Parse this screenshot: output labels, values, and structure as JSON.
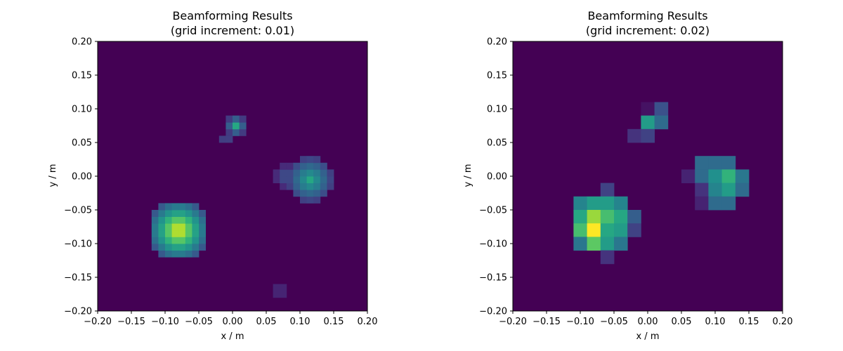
{
  "chart_data": [
    {
      "type": "heatmap",
      "title": "Beamforming Results\n(grid increment: 0.01)",
      "title_lines": [
        "Beamforming Results",
        "(grid increment: 0.01)"
      ],
      "xlabel": "x / m",
      "ylabel": "y / m",
      "xlim": [
        -0.2,
        0.2
      ],
      "ylim": [
        -0.2,
        0.2
      ],
      "grid_increment": 0.01,
      "colormap": "viridis",
      "background_value": 0,
      "xticks": [
        "−0.20",
        "−0.15",
        "−0.10",
        "−0.05",
        "0.00",
        "0.05",
        "0.10",
        "0.15",
        "0.20"
      ],
      "yticks": [
        "−0.20",
        "−0.15",
        "−0.10",
        "−0.05",
        "0.00",
        "0.05",
        "0.10",
        "0.15",
        "0.20"
      ],
      "sources": [
        {
          "x": -0.08,
          "y": -0.08,
          "strength": 1.0,
          "radius": 0.045
        },
        {
          "x": 0.115,
          "y": -0.005,
          "strength": 0.6,
          "radius": 0.035
        },
        {
          "x": 0.08,
          "y": 0.0,
          "strength": 0.3,
          "radius": 0.02
        },
        {
          "x": 0.005,
          "y": 0.075,
          "strength": 0.6,
          "radius": 0.015
        },
        {
          "x": -0.01,
          "y": 0.055,
          "strength": 0.3,
          "radius": 0.01
        },
        {
          "x": 0.07,
          "y": -0.17,
          "strength": 0.3,
          "radius": 0.008
        }
      ]
    },
    {
      "type": "heatmap",
      "title": "Beamforming Results\n(grid increment: 0.02)",
      "title_lines": [
        "Beamforming Results",
        "(grid increment: 0.02)"
      ],
      "xlabel": "x / m",
      "ylabel": "y / m",
      "xlim": [
        -0.2,
        0.2
      ],
      "ylim": [
        -0.2,
        0.2
      ],
      "grid_increment": 0.02,
      "colormap": "viridis",
      "background_value": 0,
      "xticks": [
        "−0.20",
        "−0.15",
        "−0.10",
        "−0.05",
        "0.00",
        "0.05",
        "0.10",
        "0.15",
        "0.20"
      ],
      "yticks": [
        "−0.20",
        "−0.15",
        "−0.10",
        "−0.05",
        "0.00",
        "0.05",
        "0.10",
        "0.15",
        "0.20"
      ],
      "cells": [
        {
          "x": -0.06,
          "y": -0.02,
          "v": 0.2
        },
        {
          "x": -0.1,
          "y": -0.04,
          "v": 0.45
        },
        {
          "x": -0.08,
          "y": -0.04,
          "v": 0.55
        },
        {
          "x": -0.06,
          "y": -0.04,
          "v": 0.55
        },
        {
          "x": -0.04,
          "y": -0.04,
          "v": 0.45
        },
        {
          "x": -0.1,
          "y": -0.06,
          "v": 0.6
        },
        {
          "x": -0.08,
          "y": -0.06,
          "v": 0.85
        },
        {
          "x": -0.06,
          "y": -0.06,
          "v": 0.7
        },
        {
          "x": -0.04,
          "y": -0.06,
          "v": 0.6
        },
        {
          "x": -0.02,
          "y": -0.06,
          "v": 0.3
        },
        {
          "x": -0.1,
          "y": -0.08,
          "v": 0.7
        },
        {
          "x": -0.08,
          "y": -0.08,
          "v": 1.0
        },
        {
          "x": -0.06,
          "y": -0.08,
          "v": 0.6
        },
        {
          "x": -0.04,
          "y": -0.08,
          "v": 0.55
        },
        {
          "x": -0.02,
          "y": -0.08,
          "v": 0.2
        },
        {
          "x": -0.1,
          "y": -0.1,
          "v": 0.4
        },
        {
          "x": -0.08,
          "y": -0.1,
          "v": 0.75
        },
        {
          "x": -0.06,
          "y": -0.1,
          "v": 0.55
        },
        {
          "x": -0.04,
          "y": -0.1,
          "v": 0.4
        },
        {
          "x": -0.06,
          "y": -0.12,
          "v": 0.15
        },
        {
          "x": 0.08,
          "y": 0.02,
          "v": 0.35
        },
        {
          "x": 0.1,
          "y": 0.02,
          "v": 0.35
        },
        {
          "x": 0.12,
          "y": 0.02,
          "v": 0.35
        },
        {
          "x": 0.06,
          "y": 0.0,
          "v": 0.1
        },
        {
          "x": 0.08,
          "y": 0.0,
          "v": 0.35
        },
        {
          "x": 0.1,
          "y": 0.0,
          "v": 0.5
        },
        {
          "x": 0.12,
          "y": 0.0,
          "v": 0.65
        },
        {
          "x": 0.14,
          "y": 0.0,
          "v": 0.4
        },
        {
          "x": 0.08,
          "y": -0.02,
          "v": 0.15
        },
        {
          "x": 0.1,
          "y": -0.02,
          "v": 0.45
        },
        {
          "x": 0.12,
          "y": -0.02,
          "v": 0.55
        },
        {
          "x": 0.14,
          "y": -0.02,
          "v": 0.35
        },
        {
          "x": 0.08,
          "y": -0.04,
          "v": 0.1
        },
        {
          "x": 0.1,
          "y": -0.04,
          "v": 0.35
        },
        {
          "x": 0.12,
          "y": -0.04,
          "v": 0.35
        },
        {
          "x": 0.0,
          "y": 0.1,
          "v": 0.05
        },
        {
          "x": 0.02,
          "y": 0.1,
          "v": 0.25
        },
        {
          "x": 0.0,
          "y": 0.08,
          "v": 0.55
        },
        {
          "x": 0.02,
          "y": 0.08,
          "v": 0.35
        },
        {
          "x": -0.02,
          "y": 0.06,
          "v": 0.15
        },
        {
          "x": 0.0,
          "y": 0.06,
          "v": 0.2
        }
      ]
    }
  ]
}
